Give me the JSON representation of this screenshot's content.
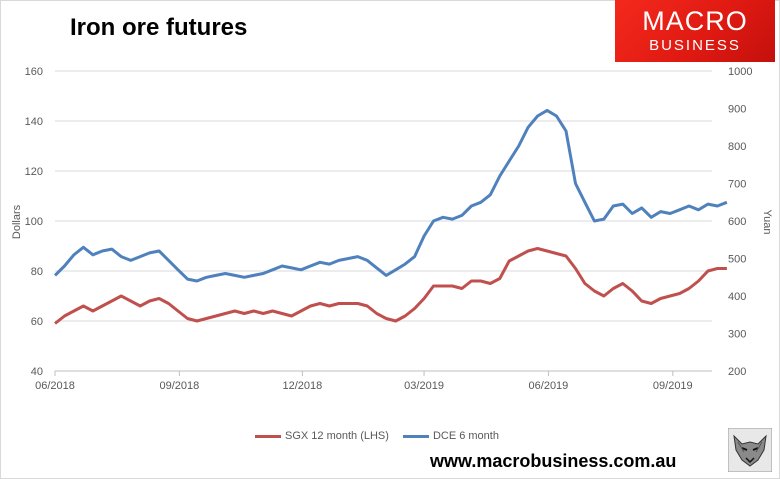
{
  "title": "Iron ore futures",
  "logo": {
    "line1": "MACRO",
    "line2": "BUSINESS",
    "icon": "fox-logo-icon"
  },
  "website": "www.macrobusiness.com.au",
  "colors": {
    "sgx": "#c0504d",
    "dce": "#4f81bd",
    "logo_bg": "#e8211a",
    "grid": "#d9d9d9"
  },
  "chart_data": {
    "type": "line",
    "title": "Iron ore futures",
    "ylabel": "Dollars",
    "y2label": "Yuan",
    "xlim": [
      "2018-06-01",
      "2019-09-30"
    ],
    "ylim": [
      40,
      160
    ],
    "y2lim": [
      200,
      1000
    ],
    "xticks": [
      "06/2018",
      "09/2018",
      "12/2018",
      "03/2019",
      "06/2019",
      "09/2019"
    ],
    "yticks": [
      40,
      60,
      80,
      100,
      120,
      140,
      160
    ],
    "y2ticks": [
      200,
      300,
      400,
      500,
      600,
      700,
      800,
      900,
      1000
    ],
    "grid": true,
    "legend_position": "bottom",
    "series": [
      {
        "name": "SGX 12 month (LHS)",
        "axis": "left",
        "color": "#c0504d",
        "points": [
          [
            "2018-06-01",
            59
          ],
          [
            "2018-06-08",
            62
          ],
          [
            "2018-06-15",
            64
          ],
          [
            "2018-06-22",
            66
          ],
          [
            "2018-06-29",
            64
          ],
          [
            "2018-07-06",
            66
          ],
          [
            "2018-07-13",
            68
          ],
          [
            "2018-07-20",
            70
          ],
          [
            "2018-07-27",
            68
          ],
          [
            "2018-08-03",
            66
          ],
          [
            "2018-08-10",
            68
          ],
          [
            "2018-08-17",
            69
          ],
          [
            "2018-08-24",
            67
          ],
          [
            "2018-08-31",
            64
          ],
          [
            "2018-09-07",
            61
          ],
          [
            "2018-09-14",
            60
          ],
          [
            "2018-09-21",
            61
          ],
          [
            "2018-09-28",
            62
          ],
          [
            "2018-10-05",
            63
          ],
          [
            "2018-10-12",
            64
          ],
          [
            "2018-10-19",
            63
          ],
          [
            "2018-10-26",
            64
          ],
          [
            "2018-11-02",
            63
          ],
          [
            "2018-11-09",
            64
          ],
          [
            "2018-11-16",
            63
          ],
          [
            "2018-11-23",
            62
          ],
          [
            "2018-11-30",
            64
          ],
          [
            "2018-12-07",
            66
          ],
          [
            "2018-12-14",
            67
          ],
          [
            "2018-12-21",
            66
          ],
          [
            "2018-12-28",
            67
          ],
          [
            "2019-01-04",
            67
          ],
          [
            "2019-01-11",
            67
          ],
          [
            "2019-01-18",
            66
          ],
          [
            "2019-01-25",
            63
          ],
          [
            "2019-02-01",
            61
          ],
          [
            "2019-02-08",
            60
          ],
          [
            "2019-02-15",
            62
          ],
          [
            "2019-02-22",
            65
          ],
          [
            "2019-03-01",
            69
          ],
          [
            "2019-03-08",
            74
          ],
          [
            "2019-03-15",
            74
          ],
          [
            "2019-03-22",
            74
          ],
          [
            "2019-03-29",
            73
          ],
          [
            "2019-04-05",
            76
          ],
          [
            "2019-04-12",
            76
          ],
          [
            "2019-04-19",
            75
          ],
          [
            "2019-04-26",
            77
          ],
          [
            "2019-05-03",
            84
          ],
          [
            "2019-05-10",
            86
          ],
          [
            "2019-05-17",
            88
          ],
          [
            "2019-05-24",
            89
          ],
          [
            "2019-05-31",
            88
          ],
          [
            "2019-06-07",
            87
          ],
          [
            "2019-06-14",
            86
          ],
          [
            "2019-06-21",
            81
          ],
          [
            "2019-06-28",
            75
          ],
          [
            "2019-07-05",
            72
          ],
          [
            "2019-07-12",
            70
          ],
          [
            "2019-07-19",
            73
          ],
          [
            "2019-07-26",
            75
          ],
          [
            "2019-08-02",
            72
          ],
          [
            "2019-08-09",
            68
          ],
          [
            "2019-08-16",
            67
          ],
          [
            "2019-08-23",
            69
          ],
          [
            "2019-08-30",
            70
          ],
          [
            "2019-09-06",
            71
          ],
          [
            "2019-09-13",
            73
          ],
          [
            "2019-09-20",
            76
          ],
          [
            "2019-09-27",
            80
          ],
          [
            "2019-10-04",
            81
          ],
          [
            "2019-10-11",
            81
          ]
        ]
      },
      {
        "name": "DCE 6 month",
        "axis": "right",
        "color": "#4f81bd",
        "points": [
          [
            "2018-06-01",
            455
          ],
          [
            "2018-06-08",
            480
          ],
          [
            "2018-06-15",
            510
          ],
          [
            "2018-06-22",
            530
          ],
          [
            "2018-06-29",
            510
          ],
          [
            "2018-07-06",
            520
          ],
          [
            "2018-07-13",
            525
          ],
          [
            "2018-07-20",
            505
          ],
          [
            "2018-07-27",
            495
          ],
          [
            "2018-08-03",
            505
          ],
          [
            "2018-08-10",
            515
          ],
          [
            "2018-08-17",
            520
          ],
          [
            "2018-08-24",
            495
          ],
          [
            "2018-08-31",
            470
          ],
          [
            "2018-09-07",
            445
          ],
          [
            "2018-09-14",
            440
          ],
          [
            "2018-09-21",
            450
          ],
          [
            "2018-09-28",
            455
          ],
          [
            "2018-10-05",
            460
          ],
          [
            "2018-10-12",
            455
          ],
          [
            "2018-10-19",
            450
          ],
          [
            "2018-10-26",
            455
          ],
          [
            "2018-11-02",
            460
          ],
          [
            "2018-11-09",
            470
          ],
          [
            "2018-11-16",
            480
          ],
          [
            "2018-11-23",
            475
          ],
          [
            "2018-11-30",
            470
          ],
          [
            "2018-12-07",
            480
          ],
          [
            "2018-12-14",
            490
          ],
          [
            "2018-12-21",
            485
          ],
          [
            "2018-12-28",
            495
          ],
          [
            "2019-01-04",
            500
          ],
          [
            "2019-01-11",
            505
          ],
          [
            "2019-01-18",
            495
          ],
          [
            "2019-01-25",
            475
          ],
          [
            "2019-02-01",
            455
          ],
          [
            "2019-02-08",
            470
          ],
          [
            "2019-02-15",
            485
          ],
          [
            "2019-02-22",
            505
          ],
          [
            "2019-03-01",
            560
          ],
          [
            "2019-03-08",
            600
          ],
          [
            "2019-03-15",
            610
          ],
          [
            "2019-03-22",
            605
          ],
          [
            "2019-03-29",
            615
          ],
          [
            "2019-04-05",
            640
          ],
          [
            "2019-04-12",
            650
          ],
          [
            "2019-04-19",
            670
          ],
          [
            "2019-04-26",
            720
          ],
          [
            "2019-05-03",
            760
          ],
          [
            "2019-05-10",
            800
          ],
          [
            "2019-05-17",
            850
          ],
          [
            "2019-05-24",
            880
          ],
          [
            "2019-05-31",
            895
          ],
          [
            "2019-06-07",
            880
          ],
          [
            "2019-06-14",
            840
          ],
          [
            "2019-06-21",
            700
          ],
          [
            "2019-06-28",
            650
          ],
          [
            "2019-07-05",
            600
          ],
          [
            "2019-07-12",
            605
          ],
          [
            "2019-07-19",
            640
          ],
          [
            "2019-07-26",
            645
          ],
          [
            "2019-08-02",
            620
          ],
          [
            "2019-08-09",
            635
          ],
          [
            "2019-08-16",
            610
          ],
          [
            "2019-08-23",
            625
          ],
          [
            "2019-08-30",
            620
          ],
          [
            "2019-09-06",
            630
          ],
          [
            "2019-09-13",
            640
          ],
          [
            "2019-09-20",
            630
          ],
          [
            "2019-09-27",
            645
          ],
          [
            "2019-10-04",
            640
          ],
          [
            "2019-10-11",
            650
          ]
        ]
      }
    ]
  }
}
